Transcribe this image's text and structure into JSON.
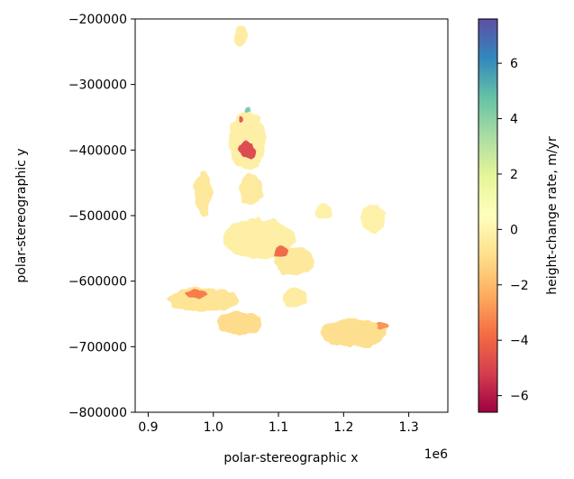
{
  "chart_data": {
    "type": "heatmap",
    "xlabel": "polar-stereographic x",
    "ylabel": "polar-stereographic y",
    "x_offset_label": "1e6",
    "x_ticks": [
      0.9,
      1.0,
      1.1,
      1.2,
      1.3
    ],
    "x_tick_labels": [
      "0.9",
      "1.0",
      "1.1",
      "1.2",
      "1.3"
    ],
    "xlim": [
      0.88,
      1.36
    ],
    "y_ticks": [
      -200000,
      -300000,
      -400000,
      -500000,
      -600000,
      -700000,
      -800000
    ],
    "y_tick_labels": [
      "−200000",
      "−300000",
      "−400000",
      "−500000",
      "−600000",
      "−700000",
      "−800000"
    ],
    "ylim": [
      -800000,
      -200000
    ],
    "colorbar": {
      "label": "height-change rate, m/yr",
      "colormap": "Spectral",
      "range": [
        -6.6,
        7.6
      ],
      "ticks": [
        -6,
        -4,
        -2,
        0,
        2,
        4,
        6
      ],
      "tick_labels": [
        "−6",
        "−4",
        "−2",
        "0",
        "2",
        "4",
        "6"
      ]
    },
    "grid": false,
    "background_value": -0.3,
    "regions": [
      {
        "name": "north-island",
        "x": 1.042,
        "y": -226000,
        "rx": 0.008,
        "ry": 16000,
        "value": -0.4
      },
      {
        "name": "main-ice-cap",
        "x": 1.052,
        "y": -385000,
        "rx": 0.028,
        "ry": 45000,
        "value": -0.3
      },
      {
        "name": "main-cap-stem",
        "x": 1.058,
        "y": -460000,
        "rx": 0.018,
        "ry": 22000,
        "value": -0.5
      },
      {
        "name": "west-lobe",
        "x": 0.985,
        "y": -465000,
        "rx": 0.012,
        "ry": 35000,
        "value": -0.6
      },
      {
        "name": "central-mass",
        "x": 1.07,
        "y": -535000,
        "rx": 0.055,
        "ry": 30000,
        "value": -0.3
      },
      {
        "name": "central-east",
        "x": 1.125,
        "y": -570000,
        "rx": 0.03,
        "ry": 22000,
        "value": -0.6
      },
      {
        "name": "east-arm",
        "x": 1.245,
        "y": -505000,
        "rx": 0.018,
        "ry": 22000,
        "value": -0.2
      },
      {
        "name": "east-blob",
        "x": 1.17,
        "y": -495000,
        "rx": 0.012,
        "ry": 12000,
        "value": -0.2
      },
      {
        "name": "southwest-band",
        "x": 0.985,
        "y": -628000,
        "rx": 0.055,
        "ry": 18000,
        "value": -0.8
      },
      {
        "name": "southwest-tail",
        "x": 1.04,
        "y": -665000,
        "rx": 0.035,
        "ry": 18000,
        "value": -1.1
      },
      {
        "name": "southeast-range",
        "x": 1.215,
        "y": -680000,
        "rx": 0.05,
        "ry": 22000,
        "value": -1.0
      },
      {
        "name": "south-patch",
        "x": 1.125,
        "y": -625000,
        "rx": 0.02,
        "ry": 15000,
        "value": -0.4
      },
      {
        "name": "hotspot-main",
        "x": 1.052,
        "y": -400000,
        "rx": 0.014,
        "ry": 14000,
        "value": -5.0
      },
      {
        "name": "hotspot-north",
        "x": 1.043,
        "y": -355000,
        "rx": 0.004,
        "ry": 6000,
        "value": -4.5
      },
      {
        "name": "hotspot-central",
        "x": 1.105,
        "y": -555000,
        "rx": 0.008,
        "ry": 7000,
        "value": -4.0
      },
      {
        "name": "hotspot-southwest",
        "x": 0.975,
        "y": -620000,
        "rx": 0.018,
        "ry": 6000,
        "value": -3.5
      },
      {
        "name": "hotspot-southeast",
        "x": 1.26,
        "y": -668000,
        "rx": 0.008,
        "ry": 6000,
        "value": -3.0
      },
      {
        "name": "thickening-north",
        "x": 1.053,
        "y": -340000,
        "rx": 0.004,
        "ry": 3000,
        "value": 4.5
      }
    ]
  }
}
